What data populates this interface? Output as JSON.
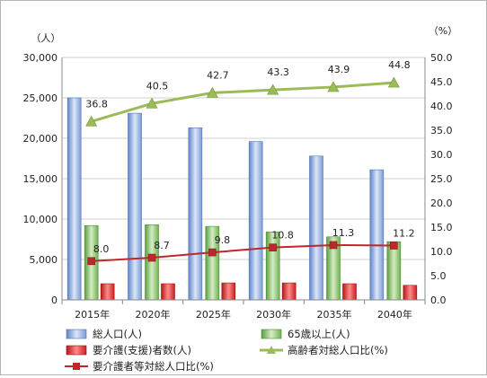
{
  "chart_data": {
    "type": "bar",
    "categories": [
      "2015年",
      "2020年",
      "2025年",
      "2030年",
      "2035年",
      "2040年"
    ],
    "y_left": {
      "unit": "（人）",
      "min": 0,
      "max": 30000,
      "step": 5000,
      "ticks": [
        "0",
        "5,000",
        "10,000",
        "15,000",
        "20,000",
        "25,000",
        "30,000"
      ]
    },
    "y_right": {
      "unit": "（%）",
      "min": 0,
      "max": 50,
      "step": 5,
      "ticks": [
        "0.0",
        "5.0",
        "10.0",
        "15.0",
        "20.0",
        "25.0",
        "30.0",
        "35.0",
        "40.0",
        "45.0",
        "50.0"
      ]
    },
    "series": [
      {
        "name": "総人口(人)",
        "kind": "bar",
        "axis": "left",
        "color": "#8fb1e3",
        "values": [
          25000,
          23100,
          21300,
          19600,
          17800,
          16100
        ]
      },
      {
        "name": "65歳以上(人)",
        "kind": "bar",
        "axis": "left",
        "color": "#8cc46a",
        "values": [
          9200,
          9300,
          9100,
          8400,
          7800,
          7200
        ]
      },
      {
        "name": "要介護(支援)者数(人)",
        "kind": "bar",
        "axis": "left",
        "color": "#e03030",
        "values": [
          2000,
          2000,
          2100,
          2100,
          2000,
          1800
        ]
      },
      {
        "name": "高齢者対総人口比(%)",
        "kind": "line",
        "axis": "right",
        "color": "#9bbb59",
        "values": [
          36.8,
          40.5,
          42.7,
          43.3,
          43.9,
          44.8
        ],
        "labels": [
          "36.8",
          "40.5",
          "42.7",
          "43.3",
          "43.9",
          "44.8"
        ]
      },
      {
        "name": "要介護者等対総人口比(%)",
        "kind": "line",
        "axis": "right",
        "color": "#c0272d",
        "values": [
          8.0,
          8.7,
          9.8,
          10.8,
          11.3,
          11.2
        ],
        "labels": [
          "8.0",
          "8.7",
          "9.8",
          "10.8",
          "11.3",
          "11.2"
        ]
      }
    ],
    "legend": {
      "placement": "bottom",
      "items": [
        "総人口(人)",
        "65歳以上(人)",
        "要介護(支援)者数(人)",
        "高齢者対総人口比(%)",
        "要介護者等対総人口比(%)"
      ]
    },
    "gridlines": true
  }
}
